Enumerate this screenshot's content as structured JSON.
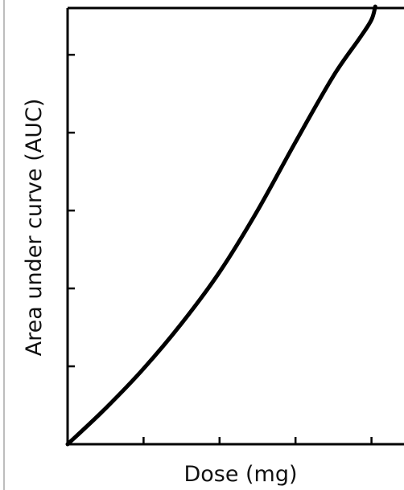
{
  "chart_data": {
    "type": "line",
    "title": "",
    "xlabel": "Dose (mg)",
    "ylabel": "Area under curve (AUC)",
    "xlim": [
      0,
      5
    ],
    "ylim": [
      0,
      5.6
    ],
    "x_ticks": [
      1,
      2,
      3,
      4,
      5
    ],
    "y_ticks": [
      1,
      2,
      3,
      4,
      5
    ],
    "tick_labels_shown": false,
    "grid": false,
    "legend": "none",
    "line_color": "#000000",
    "series": [
      {
        "points": [
          {
            "x": 0.0,
            "y": 0.0
          },
          {
            "x": 0.5,
            "y": 0.46
          },
          {
            "x": 1.0,
            "y": 0.97
          },
          {
            "x": 1.5,
            "y": 1.55
          },
          {
            "x": 2.0,
            "y": 2.21
          },
          {
            "x": 2.5,
            "y": 3.0
          },
          {
            "x": 3.0,
            "y": 3.88
          },
          {
            "x": 3.5,
            "y": 4.73
          },
          {
            "x": 3.85,
            "y": 5.22
          },
          {
            "x": 4.0,
            "y": 5.45
          },
          {
            "x": 4.05,
            "y": 5.62
          }
        ]
      }
    ]
  }
}
